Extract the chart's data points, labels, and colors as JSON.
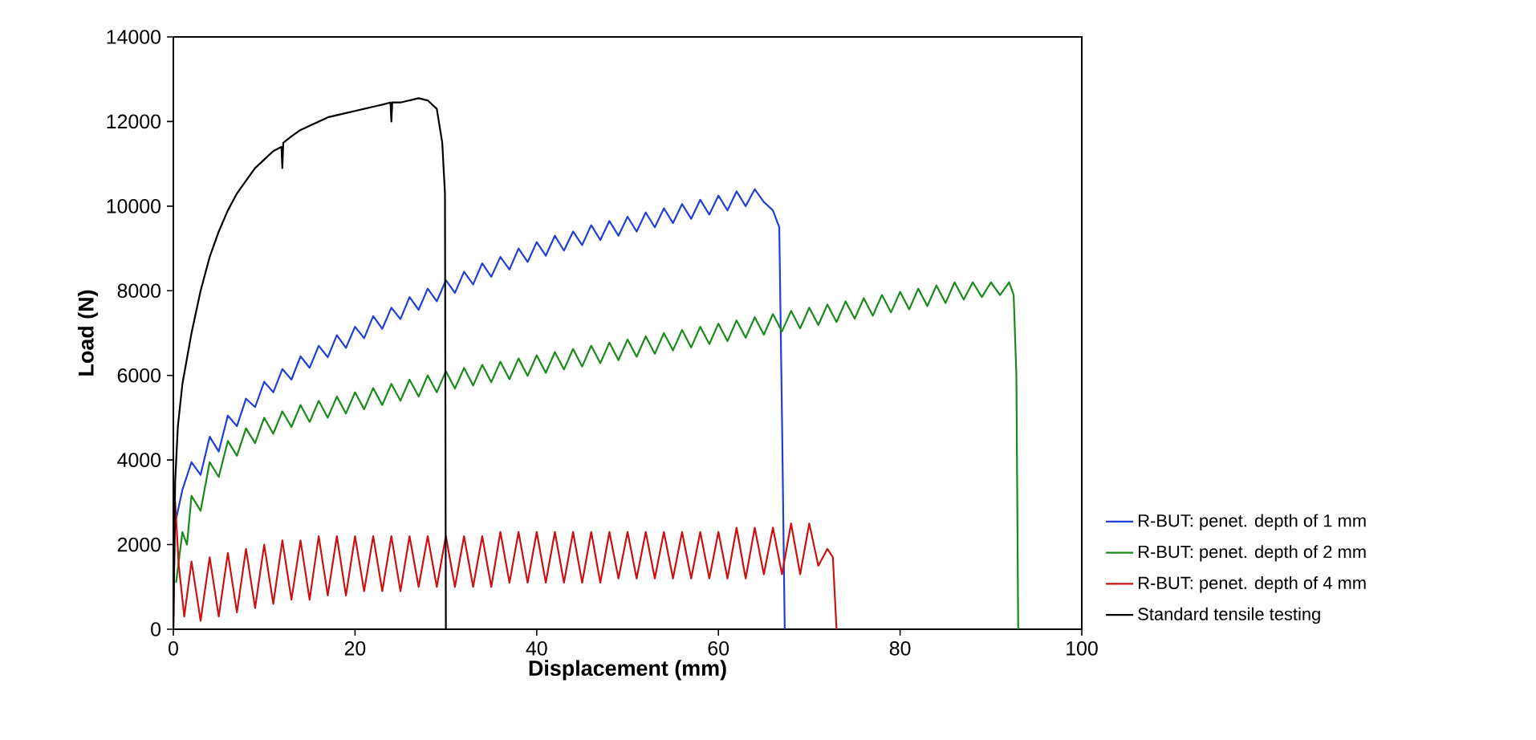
{
  "chart_data": {
    "type": "line",
    "xlabel": "Displacement (mm)",
    "ylabel": "Load (N)",
    "xlim": [
      0,
      100
    ],
    "ylim": [
      0,
      14000
    ],
    "xticks": [
      0,
      20,
      40,
      60,
      80,
      100
    ],
    "yticks": [
      0,
      2000,
      4000,
      6000,
      8000,
      10000,
      12000,
      14000
    ],
    "legend": "bottom right",
    "series": [
      {
        "name": "R-BUT: penet. depth of 1 mm",
        "color": "#1f3fd6",
        "x": [
          0.3,
          1,
          2,
          3,
          4,
          5,
          6,
          7,
          8,
          9,
          10,
          11,
          12,
          13,
          14,
          15,
          16,
          17,
          18,
          19,
          20,
          21,
          22,
          23,
          24,
          25,
          26,
          27,
          28,
          29,
          30,
          31,
          32,
          33,
          34,
          35,
          36,
          37,
          38,
          39,
          40,
          41,
          42,
          43,
          44,
          45,
          46,
          47,
          48,
          49,
          50,
          51,
          52,
          53,
          54,
          55,
          56,
          57,
          58,
          59,
          60,
          61,
          62,
          63,
          64,
          65,
          66,
          66.7,
          67,
          67.3
        ],
        "values": [
          2600,
          3300,
          3950,
          3650,
          4550,
          4200,
          5050,
          4800,
          5450,
          5250,
          5850,
          5600,
          6150,
          5900,
          6450,
          6180,
          6700,
          6430,
          6950,
          6650,
          7150,
          6880,
          7400,
          7100,
          7600,
          7330,
          7850,
          7550,
          8050,
          7750,
          8250,
          7950,
          8450,
          8150,
          8650,
          8330,
          8800,
          8500,
          9000,
          8680,
          9150,
          8830,
          9300,
          8950,
          9400,
          9080,
          9550,
          9200,
          9650,
          9300,
          9750,
          9400,
          9850,
          9500,
          9950,
          9600,
          10050,
          9700,
          10150,
          9800,
          10250,
          9900,
          10350,
          10000,
          10400,
          10100,
          9900,
          9500,
          5000,
          0
        ]
      },
      {
        "name": "R-BUT: penet. depth of 2 mm",
        "color": "#1a8a1a",
        "x": [
          0.3,
          1,
          1.5,
          2,
          3,
          4,
          5,
          6,
          7,
          8,
          9,
          10,
          11,
          12,
          13,
          14,
          15,
          16,
          17,
          18,
          19,
          20,
          21,
          22,
          23,
          24,
          25,
          26,
          27,
          28,
          29,
          30,
          31,
          32,
          33,
          34,
          35,
          36,
          37,
          38,
          39,
          40,
          41,
          42,
          43,
          44,
          45,
          46,
          47,
          48,
          49,
          50,
          51,
          52,
          53,
          54,
          55,
          56,
          57,
          58,
          59,
          60,
          61,
          62,
          63,
          64,
          65,
          66,
          67,
          68,
          69,
          70,
          71,
          72,
          73,
          74,
          75,
          76,
          77,
          78,
          79,
          80,
          81,
          82,
          83,
          84,
          85,
          86,
          87,
          88,
          89,
          90,
          91,
          92,
          92.5,
          92.8,
          93
        ],
        "values": [
          1100,
          2300,
          2000,
          3150,
          2800,
          3950,
          3600,
          4450,
          4100,
          4750,
          4400,
          5000,
          4620,
          5150,
          4780,
          5300,
          4900,
          5400,
          5000,
          5500,
          5100,
          5600,
          5200,
          5700,
          5300,
          5800,
          5400,
          5900,
          5500,
          6000,
          5600,
          6100,
          5690,
          6175,
          5760,
          6250,
          5840,
          6325,
          5910,
          6400,
          5990,
          6475,
          6060,
          6550,
          6140,
          6625,
          6210,
          6700,
          6290,
          6775,
          6360,
          6850,
          6440,
          6925,
          6510,
          7000,
          6590,
          7075,
          6660,
          7150,
          6740,
          7225,
          6810,
          7300,
          6890,
          7375,
          6960,
          7450,
          7040,
          7525,
          7110,
          7600,
          7190,
          7675,
          7260,
          7750,
          7340,
          7825,
          7410,
          7900,
          7490,
          7975,
          7560,
          8050,
          7640,
          8125,
          7710,
          8200,
          7790,
          8200,
          7850,
          8200,
          7900,
          8200,
          7900,
          6000,
          0
        ]
      },
      {
        "name": "R-BUT: penet. depth of 4 mm",
        "color": "#cc1111",
        "x": [
          0,
          0.2,
          0.6,
          1.2,
          2,
          3,
          4,
          5,
          6,
          7,
          8,
          9,
          10,
          11,
          12,
          13,
          14,
          15,
          16,
          17,
          18,
          19,
          20,
          21,
          22,
          23,
          24,
          25,
          26,
          27,
          28,
          29,
          30,
          31,
          32,
          33,
          34,
          35,
          36,
          37,
          38,
          39,
          40,
          41,
          42,
          43,
          44,
          45,
          46,
          47,
          48,
          49,
          50,
          51,
          52,
          53,
          54,
          55,
          56,
          57,
          58,
          59,
          60,
          61,
          62,
          63,
          64,
          65,
          66,
          67,
          68,
          69,
          70,
          71,
          72,
          72.6,
          73
        ],
        "values": [
          0,
          3000,
          1500,
          300,
          1600,
          200,
          1700,
          300,
          1800,
          400,
          1900,
          500,
          2000,
          600,
          2100,
          700,
          2100,
          700,
          2200,
          800,
          2200,
          800,
          2200,
          900,
          2200,
          900,
          2200,
          900,
          2200,
          1000,
          2200,
          1000,
          2200,
          1000,
          2200,
          1000,
          2200,
          1000,
          2300,
          1100,
          2300,
          1100,
          2300,
          1100,
          2300,
          1100,
          2300,
          1100,
          2300,
          1100,
          2300,
          1200,
          2300,
          1200,
          2300,
          1200,
          2300,
          1200,
          2300,
          1200,
          2300,
          1200,
          2300,
          1200,
          2400,
          1200,
          2400,
          1300,
          2400,
          1300,
          2500,
          1300,
          2500,
          1500,
          1900,
          1700,
          0
        ]
      },
      {
        "name": "Standard tensile testing",
        "color": "#000000",
        "x": [
          0,
          0.2,
          0.5,
          1,
          2,
          3,
          4,
          5,
          6,
          7,
          8,
          9,
          10,
          11,
          11.9,
          12,
          12.1,
          13,
          14,
          15,
          16,
          17,
          18,
          19,
          20,
          21,
          22,
          23,
          23.9,
          24,
          24.1,
          25,
          26,
          27,
          28,
          29,
          29.6,
          29.9,
          30
        ],
        "values": [
          0,
          3500,
          4800,
          5800,
          7000,
          8000,
          8800,
          9400,
          9900,
          10300,
          10600,
          10900,
          11100,
          11300,
          11400,
          10900,
          11500,
          11650,
          11800,
          11900,
          12000,
          12100,
          12150,
          12200,
          12250,
          12300,
          12350,
          12400,
          12450,
          12000,
          12450,
          12450,
          12500,
          12550,
          12500,
          12300,
          11500,
          10300,
          0
        ]
      }
    ]
  }
}
